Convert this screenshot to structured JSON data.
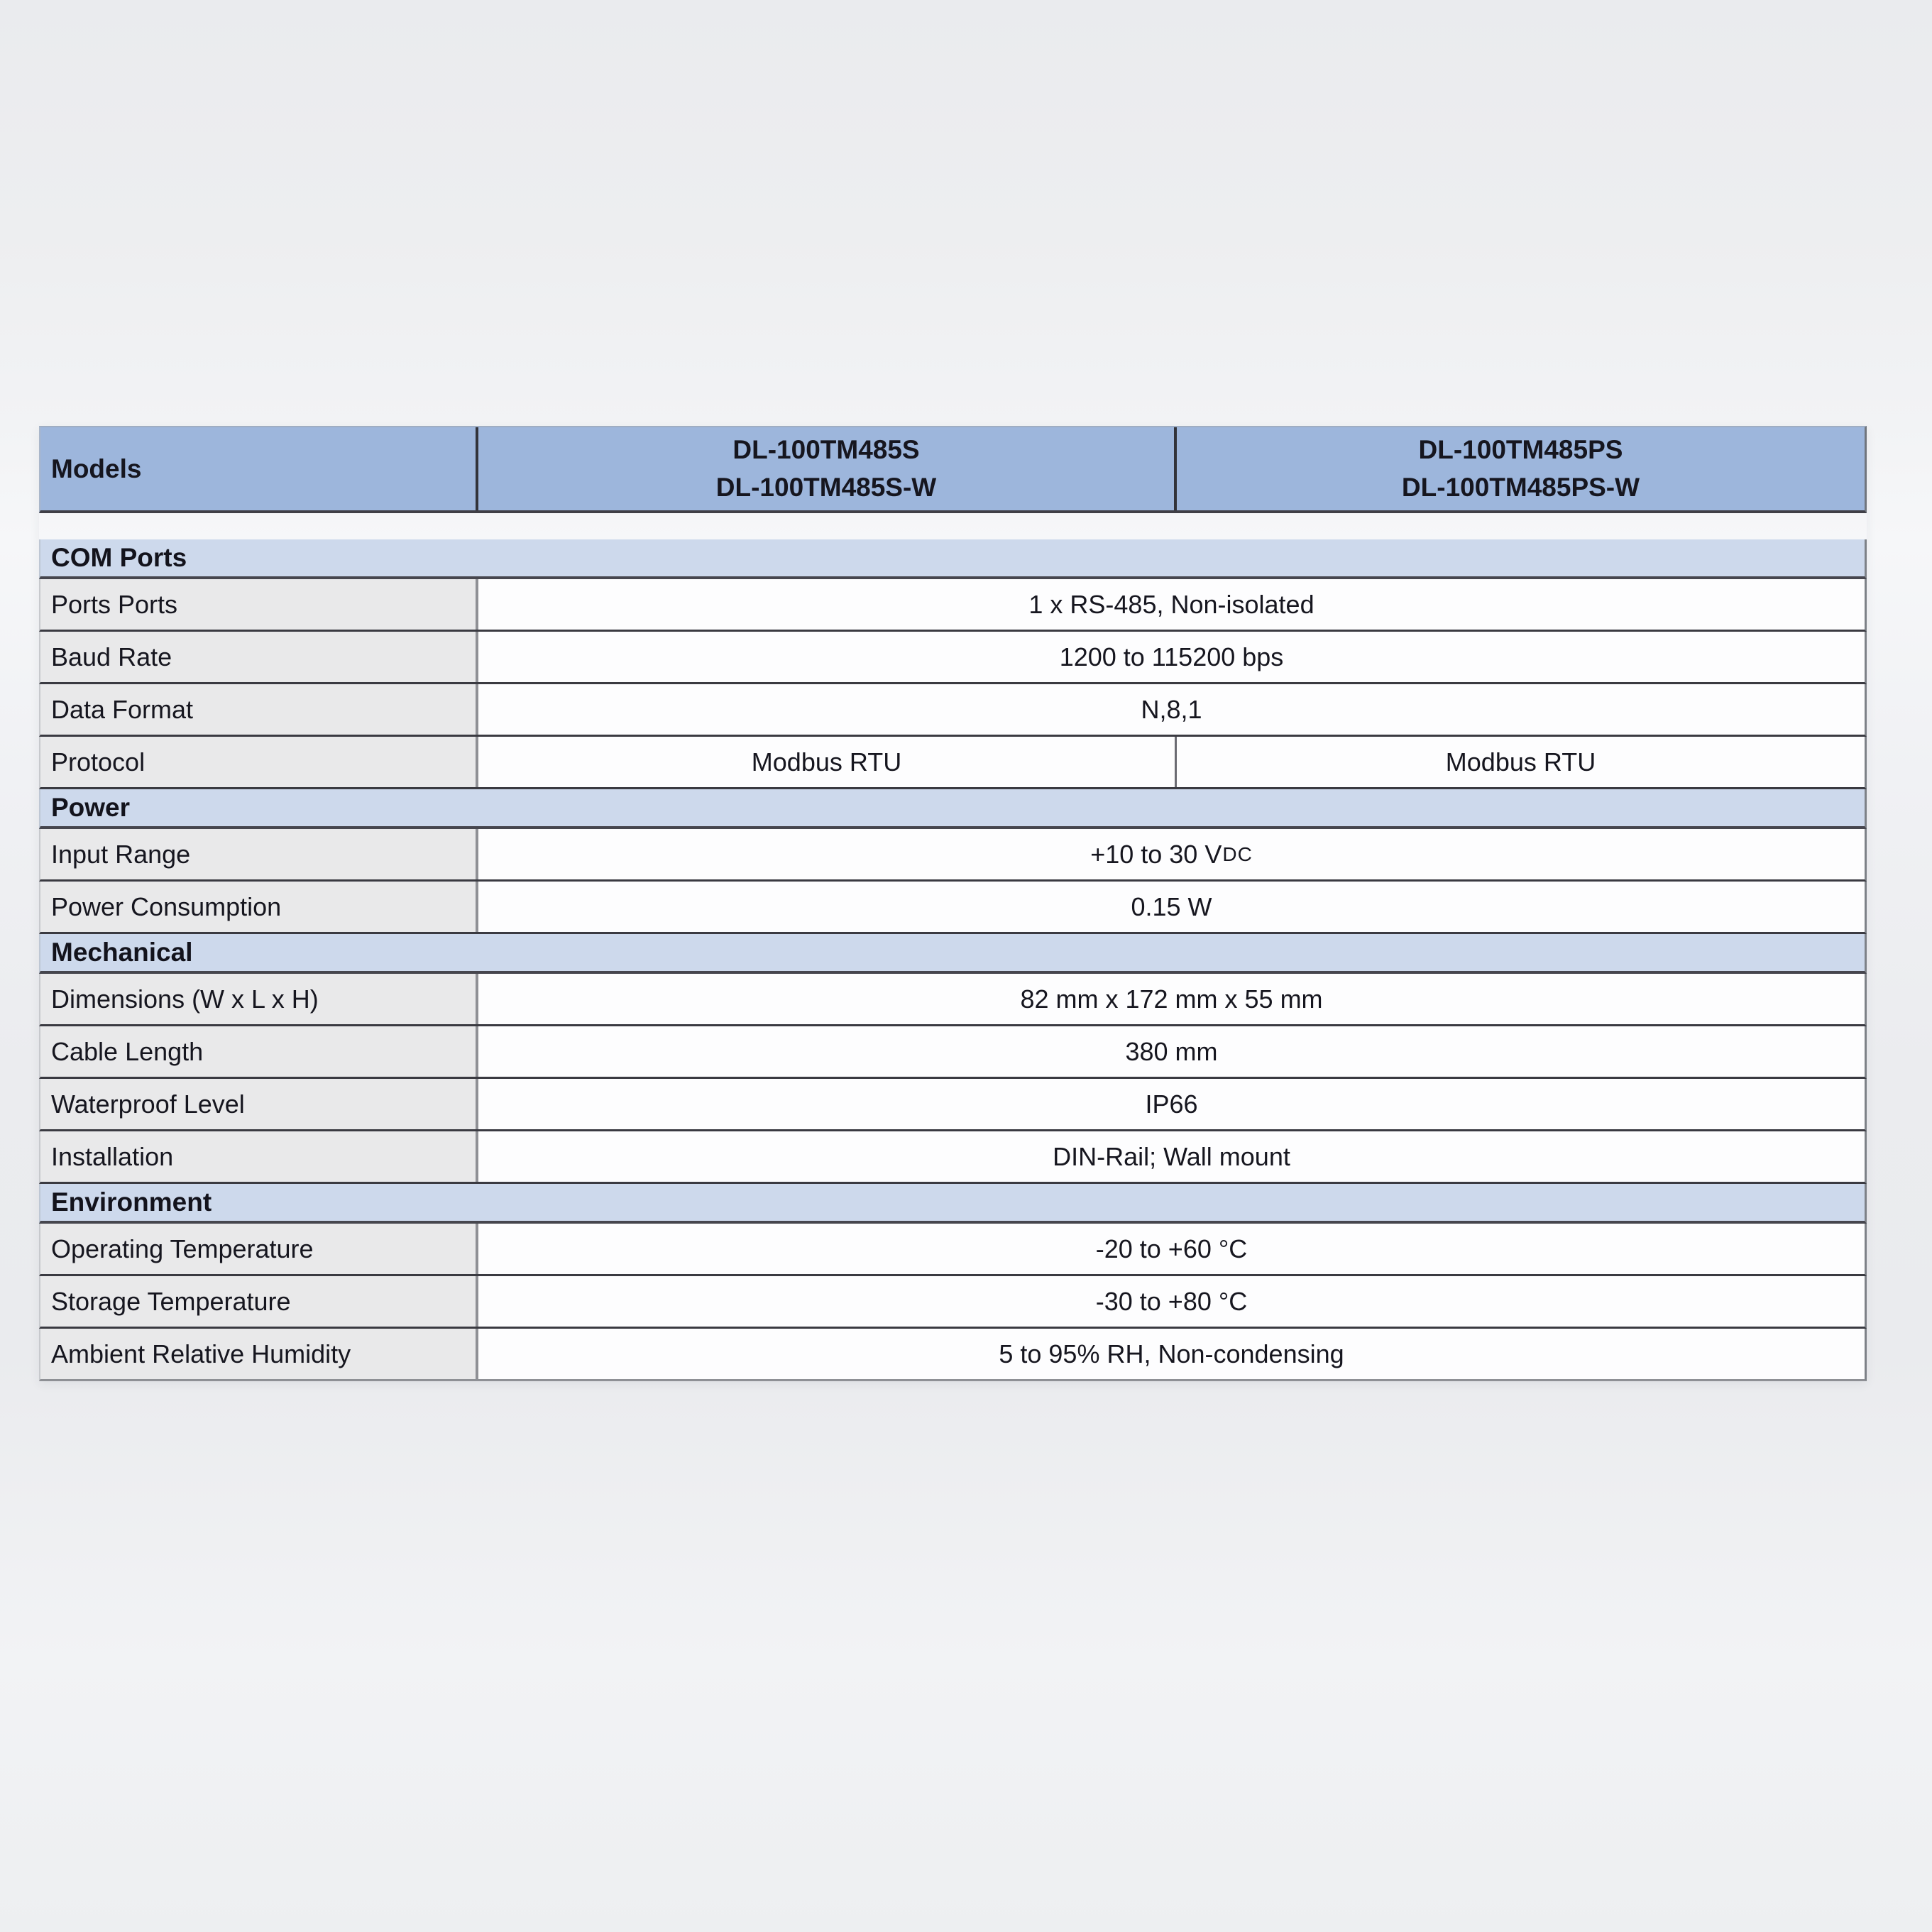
{
  "table": {
    "header": {
      "label": "Models",
      "columns": [
        {
          "lines": [
            "DL-100TM485S",
            "DL-100TM485S-W"
          ]
        },
        {
          "lines": [
            "DL-100TM485PS",
            "DL-100TM485PS-W"
          ]
        }
      ]
    },
    "sections": [
      {
        "title": "COM Ports",
        "rows": [
          {
            "label": "Ports Ports",
            "value": "1 x RS-485, Non-isolated"
          },
          {
            "label": "Baud Rate",
            "value": "1200 to 115200 bps"
          },
          {
            "label": "Data Format",
            "value": "N,8,1"
          },
          {
            "label": "Protocol",
            "values": [
              "Modbus RTU",
              "Modbus RTU"
            ]
          }
        ]
      },
      {
        "title": "Power",
        "rows": [
          {
            "label": "Input Range",
            "value": "+10 to 30 V",
            "value_suffix_small": "DC"
          },
          {
            "label": "Power Consumption",
            "value": "0.15 W"
          }
        ]
      },
      {
        "title": "Mechanical",
        "rows": [
          {
            "label": "Dimensions (W x L x H)",
            "value": "82 mm x 172 mm x 55 mm"
          },
          {
            "label": "Cable Length",
            "value": "380 mm"
          },
          {
            "label": "Waterproof Level",
            "value": "IP66"
          },
          {
            "label": "Installation",
            "value": "DIN-Rail; Wall mount"
          }
        ]
      },
      {
        "title": "Environment",
        "rows": [
          {
            "label": "Operating Temperature",
            "value": "-20 to +60 °C"
          },
          {
            "label": "Storage Temperature",
            "value": "-30 to +80 °C"
          },
          {
            "label": "Ambient Relative Humidity",
            "value": "5 to 95% RH, Non-condensing"
          }
        ]
      }
    ]
  },
  "colors": {
    "header_blue": "#9db6dc",
    "section_blue": "#cdd9ec",
    "label_gray": "#e9e9ea",
    "value_white": "#fdfdfe",
    "border_dark": "#3a3a41",
    "border_gray": "#8f9095",
    "page_gray": "#edeef0",
    "text_dark": "#16161f"
  }
}
